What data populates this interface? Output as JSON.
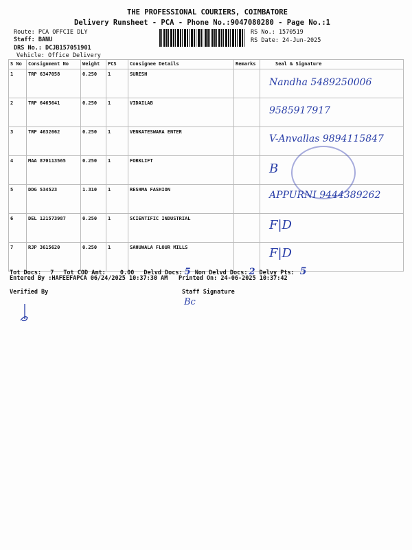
{
  "header": {
    "company": "THE PROFESSIONAL COURIERS, COIMBATORE",
    "title": "Delivery Runsheet - PCA - Phone No.:9047080280 - Page No.:1",
    "route": "Route: PCA OFFCIE DLY",
    "staff": "Staff: BANU",
    "drs": "DRS No.: DCJB157051901",
    "vehicle": "Vehicle: Office Delivery",
    "rs_no": "RS No.: 1570519",
    "rs_date": "RS Date: 24-Jun-2025"
  },
  "table": {
    "columns": [
      "S No",
      "Consignment No",
      "Weight",
      "PCS",
      "Consignee Details",
      "Remarks",
      "Seal & Signature"
    ],
    "rows": [
      {
        "sno": "1",
        "cn": "TRP 6347058",
        "weight": "0.250",
        "pcs": "1",
        "consignee": "SURESH",
        "sign": "Nandha 5489250006"
      },
      {
        "sno": "2",
        "cn": "TRP 6465641",
        "weight": "0.250",
        "pcs": "1",
        "consignee": "VIDAILAB",
        "sign": "9585917917"
      },
      {
        "sno": "3",
        "cn": "TRP 4632662",
        "weight": "0.250",
        "pcs": "1",
        "consignee": "VENKATESWARA ENTER",
        "sign": "V-Anvallas 9894115847"
      },
      {
        "sno": "4",
        "cn": "MAA 870113565",
        "weight": "0.250",
        "pcs": "1",
        "consignee": "FORKLIFT",
        "sign": "B"
      },
      {
        "sno": "5",
        "cn": "DDG 534523",
        "weight": "1.310",
        "pcs": "1",
        "consignee": "RESHMA FASHION",
        "sign": "APPURNI 9444389262"
      },
      {
        "sno": "6",
        "cn": "DEL 121573987",
        "weight": "0.250",
        "pcs": "1",
        "consignee": "SCIENTIFIC INDUSTRIAL",
        "sign": "F|D"
      },
      {
        "sno": "7",
        "cn": "RJP 3615620",
        "weight": "0.250",
        "pcs": "1",
        "consignee": "SAHUWALA FLOUR MILLS",
        "sign": "F|D"
      }
    ]
  },
  "footer": {
    "tot_docs_label": "Tot Docs:",
    "tot_docs": "7",
    "cod_label": "Tot COD Amt:",
    "cod": "0.00",
    "delvd_label": "Delvd Docs:",
    "delvd": "5",
    "non_delvd_label": "Non Delvd Docs:",
    "non_delvd": "2",
    "pts_label": "Delvy Pts:",
    "pts": "5",
    "entered": "Entered By :HAFEEFAPCA 06/24/2025 10:37:30 AM",
    "printed": "Printed On: 24-06-2025 10:37:42",
    "verified": "Verified By",
    "staff_sig": "Staff Signature",
    "staff_sig_hw": "Bc"
  },
  "colors": {
    "ink": "#2a3fa8"
  }
}
